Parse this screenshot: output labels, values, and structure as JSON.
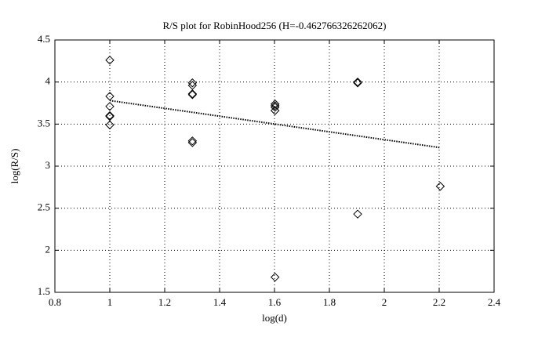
{
  "chart_data": {
    "type": "scatter",
    "title": "R/S plot for RobinHood256 (H=-0.462766326262062)",
    "x_label": "log(d)",
    "y_label": "log(R/S)",
    "series": [
      {
        "color": "#000000",
        "marker": "diamond",
        "x": [
          1,
          1,
          1,
          1,
          1,
          1,
          1.301,
          1.301,
          1.301,
          1.301,
          1.301,
          1.301,
          1.602,
          1.602,
          1.602,
          1.602,
          1.602,
          1.903,
          1.903,
          1.903,
          2.204
        ],
        "values": [
          4.26,
          3.83,
          3.71,
          3.6,
          3.59,
          3.49,
          3.99,
          3.96,
          3.86,
          3.85,
          3.3,
          3.28,
          3.74,
          3.72,
          3.7,
          3.66,
          1.68,
          4.0,
          3.99,
          2.43,
          2.76
        ]
      },
      {
        "color": "#000000",
        "linestyle": "dotted",
        "x": [
          1,
          2.204
        ],
        "values": [
          3.78,
          3.22
        ]
      }
    ],
    "xlim": [
      0.8,
      2.4
    ],
    "xticks": [
      0.8,
      1,
      1.2,
      1.4,
      1.6,
      1.8,
      2,
      2.2,
      2.4
    ],
    "ylim": [
      1.5,
      4.5
    ],
    "yticks": [
      1.5,
      2,
      2.5,
      3,
      3.5,
      4,
      4.5
    ],
    "grid": true
  }
}
